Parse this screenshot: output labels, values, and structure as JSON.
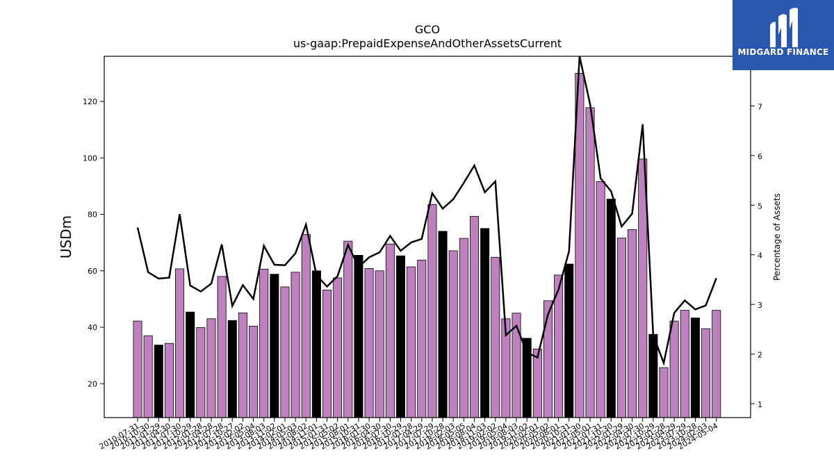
{
  "brand": {
    "name": "MIDGARD FINANCE",
    "bg_color": "#2a57b0",
    "icon": "midgard-m-logo-icon"
  },
  "chart_data": {
    "type": "bar",
    "title": "GCO",
    "subtitle": "us-gaap:PrepaidExpenseAndOtherAssetsCurrent",
    "ylabel_left": "USDm",
    "ylabel_right": "Percentage of Assets",
    "ylim_left": [
      8,
      136
    ],
    "yticks_left": [
      20,
      40,
      60,
      80,
      100,
      120
    ],
    "ylim_right": [
      0.72,
      8.0
    ],
    "yticks_right": [
      1,
      2,
      3,
      4,
      5,
      6,
      7
    ],
    "grid": false,
    "legend": "none",
    "colors": {
      "quarterly": "#bf80bf",
      "annual": "#000000",
      "line": "#000000"
    },
    "x_tick_labels": [
      "2010-07-31",
      "2010-10-30",
      "2011-01-29",
      "2011-04-30",
      "2011-07-30",
      "2011-10-29",
      "2012-01-28",
      "2012-04-28",
      "2012-07-28",
      "2012-10-27",
      "2013-02-02",
      "2013-05-04",
      "2013-08-03",
      "2013-11-02",
      "2014-02-01",
      "2014-05-03",
      "2014-08-02",
      "2014-11-01",
      "2015-01-31",
      "2015-05-02",
      "2015-08-01",
      "2015-10-31",
      "2016-01-30",
      "2016-04-30",
      "2016-07-30",
      "2016-10-29",
      "2017-01-28",
      "2017-04-29",
      "2017-07-29",
      "2017-10-28",
      "2018-02-03",
      "2018-05-05",
      "2018-08-04",
      "2018-11-03",
      "2019-02-02",
      "2019-05-04",
      "2019-08-03",
      "2019-11-02",
      "2020-02-01",
      "2020-05-02",
      "2020-08-01",
      "2020-10-31",
      "2021-01-30",
      "2021-05-01",
      "2021-07-31",
      "2021-10-30",
      "2022-01-29",
      "2022-04-30",
      "2022-07-30",
      "2022-10-29",
      "2023-01-28",
      "2023-04-29",
      "2023-07-29",
      "2023-10-28",
      "2024-02-03",
      "2024-05-04"
    ],
    "values": [
      42.2,
      37.0,
      33.7,
      34.3,
      60.7,
      45.4,
      39.9,
      43.0,
      58.0,
      42.4,
      45.1,
      40.4,
      60.6,
      58.8,
      54.3,
      59.5,
      72.9,
      60.0,
      53.2,
      57.5,
      70.5,
      65.5,
      60.8,
      60.0,
      69.5,
      65.3,
      61.4,
      63.8,
      83.5,
      74.0,
      67.1,
      71.5,
      79.3,
      75.0,
      64.8,
      43.0,
      45.0,
      36.1,
      32.3,
      49.4,
      58.5,
      62.4,
      130.0,
      117.8,
      91.6,
      85.4,
      71.6,
      74.6,
      99.6,
      37.5,
      25.7,
      42.2,
      46.0,
      43.3,
      39.5,
      46.0
    ],
    "annual_flags": [
      0,
      0,
      1,
      0,
      0,
      1,
      0,
      0,
      0,
      1,
      0,
      0,
      0,
      1,
      0,
      0,
      0,
      1,
      0,
      0,
      0,
      1,
      0,
      0,
      0,
      1,
      0,
      0,
      0,
      1,
      0,
      0,
      0,
      1,
      0,
      0,
      0,
      1,
      0,
      0,
      0,
      1,
      0,
      0,
      0,
      1,
      0,
      0,
      0,
      1,
      0,
      0,
      0,
      1,
      0,
      0
    ],
    "pct_of_assets": [
      4.55,
      3.65,
      3.52,
      3.54,
      4.82,
      3.38,
      3.26,
      3.42,
      4.21,
      2.97,
      3.39,
      3.11,
      4.18,
      3.8,
      3.79,
      4.03,
      4.61,
      3.59,
      3.36,
      3.57,
      4.2,
      3.75,
      3.95,
      4.05,
      4.38,
      4.08,
      4.25,
      4.32,
      5.24,
      4.93,
      5.12,
      5.45,
      5.8,
      5.26,
      5.48,
      2.38,
      2.57,
      2.03,
      1.93,
      2.8,
      3.3,
      4.07,
      8.0,
      7.04,
      5.54,
      5.28,
      4.57,
      4.83,
      6.63,
      2.38,
      1.82,
      2.83,
      3.08,
      2.9,
      2.98,
      3.53
    ]
  }
}
